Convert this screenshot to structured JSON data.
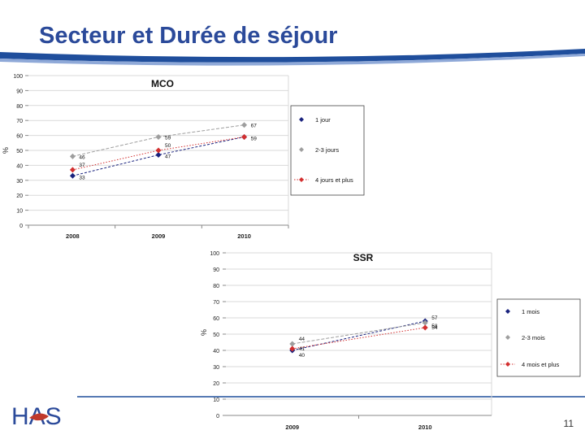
{
  "slide": {
    "title": "Secteur et Durée de séjour",
    "page_number": "11",
    "logo_text": "HAS",
    "colors": {
      "title": "#2b4a9a",
      "band": "#1f4e9c",
      "logo": "#2b4a9a",
      "logo_accent": "#c0392b"
    }
  },
  "chart_data": [
    {
      "type": "line",
      "title": "MCO",
      "ylabel": "%",
      "ylim": [
        0,
        100
      ],
      "yticks": [
        0,
        10,
        20,
        30,
        40,
        50,
        60,
        70,
        80,
        90,
        100
      ],
      "categories": [
        "2008",
        "2009",
        "2010"
      ],
      "grid": true,
      "legend_position": "right",
      "series": [
        {
          "name": "1 jour",
          "values": [
            33,
            47,
            59
          ],
          "color": "#1a237e",
          "marker": "diamond"
        },
        {
          "name": "2-3 jours",
          "values": [
            46,
            59,
            67
          ],
          "color": "#9e9e9e",
          "marker": "diamond"
        },
        {
          "name": "4 jours et plus",
          "values": [
            37,
            50,
            59
          ],
          "color": "#d32f2f",
          "marker": "diamond"
        }
      ],
      "data_labels": [
        [
          "33",
          "47",
          "59"
        ],
        [
          "46",
          "59",
          "67"
        ],
        [
          "37",
          "50",
          ""
        ]
      ]
    },
    {
      "type": "line",
      "title": "SSR",
      "ylabel": "%",
      "ylim": [
        0,
        100
      ],
      "yticks": [
        0,
        10,
        20,
        30,
        40,
        50,
        60,
        70,
        80,
        90,
        100
      ],
      "categories": [
        "2009",
        "2010"
      ],
      "grid": true,
      "legend_position": "right",
      "series": [
        {
          "name": "1 mois",
          "values": [
            40,
            58
          ],
          "color": "#1a237e",
          "marker": "diamond"
        },
        {
          "name": "2-3 mois",
          "values": [
            44,
            57
          ],
          "color": "#9e9e9e",
          "marker": "diamond"
        },
        {
          "name": "4 mois et plus",
          "values": [
            41,
            54
          ],
          "color": "#d32f2f",
          "marker": "diamond"
        }
      ],
      "data_labels": [
        [
          "40",
          "58"
        ],
        [
          "44",
          "57"
        ],
        [
          "41",
          "54"
        ]
      ]
    }
  ]
}
